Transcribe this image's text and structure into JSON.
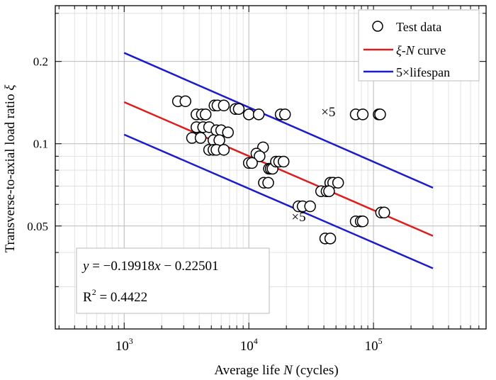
{
  "chart_data": {
    "type": "scatter",
    "title": "",
    "xlabel_prefix": "Average life ",
    "xlabel_var": "N",
    "xlabel_suffix": " (cycles)",
    "ylabel_prefix": "Transverse-to-axial load ratio ",
    "ylabel_var": "ξ",
    "xscale": "log",
    "yscale": "log",
    "xlim": [
      280,
      800000
    ],
    "ylim": [
      0.021,
      0.32
    ],
    "x_ticks": [
      {
        "value": 1000,
        "base": "10",
        "exp": "3"
      },
      {
        "value": 10000,
        "base": "10",
        "exp": "4"
      },
      {
        "value": 100000,
        "base": "10",
        "exp": "5"
      }
    ],
    "y_ticks": [
      {
        "value": 0.05,
        "label": "0.05"
      },
      {
        "value": 0.1,
        "label": "0.1"
      },
      {
        "value": 0.2,
        "label": "0.2"
      }
    ],
    "grid": true,
    "legend_position": "top-right",
    "legend": [
      {
        "label": "Test data",
        "marker": "open-circle",
        "color": "#000000"
      },
      {
        "label_var": "ξ",
        "label_dash": "-",
        "label_var2": "N",
        "label_suffix": " curve",
        "color": "#dd1c1c"
      },
      {
        "label": "5×lifespan",
        "color": "#1c1ccc"
      }
    ],
    "series": [
      {
        "name": "Test data",
        "type": "scatter",
        "points": [
          [
            2700,
            0.143
          ],
          [
            3100,
            0.143
          ],
          [
            3800,
            0.128
          ],
          [
            4200,
            0.128
          ],
          [
            4500,
            0.128
          ],
          [
            5300,
            0.138
          ],
          [
            5600,
            0.138
          ],
          [
            6300,
            0.138
          ],
          [
            7800,
            0.134
          ],
          [
            8300,
            0.134
          ],
          [
            10000,
            0.128
          ],
          [
            12000,
            0.128
          ],
          [
            18000,
            0.128
          ],
          [
            19500,
            0.128
          ],
          [
            3800,
            0.115
          ],
          [
            4300,
            0.115
          ],
          [
            4800,
            0.115
          ],
          [
            5500,
            0.112
          ],
          [
            6000,
            0.112
          ],
          [
            6800,
            0.11
          ],
          [
            3500,
            0.105
          ],
          [
            4100,
            0.105
          ],
          [
            5200,
            0.103
          ],
          [
            5800,
            0.103
          ],
          [
            4800,
            0.095
          ],
          [
            5200,
            0.095
          ],
          [
            5500,
            0.095
          ],
          [
            6300,
            0.095
          ],
          [
            13000,
            0.097
          ],
          [
            11500,
            0.092
          ],
          [
            12200,
            0.09
          ],
          [
            10000,
            0.085
          ],
          [
            10600,
            0.085
          ],
          [
            14500,
            0.081
          ],
          [
            15000,
            0.081
          ],
          [
            15500,
            0.081
          ],
          [
            16500,
            0.086
          ],
          [
            17500,
            0.086
          ],
          [
            19000,
            0.086
          ],
          [
            13200,
            0.072
          ],
          [
            14300,
            0.072
          ],
          [
            45000,
            0.072
          ],
          [
            47500,
            0.072
          ],
          [
            52000,
            0.072
          ],
          [
            38000,
            0.067
          ],
          [
            42000,
            0.067
          ],
          [
            44000,
            0.067
          ],
          [
            25000,
            0.059
          ],
          [
            27000,
            0.059
          ],
          [
            31000,
            0.059
          ],
          [
            72000,
            0.052
          ],
          [
            79000,
            0.052
          ],
          [
            82000,
            0.052
          ],
          [
            41000,
            0.045
          ],
          [
            45000,
            0.045
          ],
          [
            115000,
            0.056
          ],
          [
            122000,
            0.056
          ],
          [
            72000,
            0.128
          ],
          [
            82000,
            0.128
          ],
          [
            110000,
            0.128
          ],
          [
            113000,
            0.128
          ]
        ]
      },
      {
        "name": "ξ-N curve",
        "type": "line",
        "x": [
          1000,
          300000
        ],
        "y": [
          0.142,
          0.046
        ]
      },
      {
        "name": "5×lifespan upper",
        "type": "line",
        "x": [
          1000,
          300000
        ],
        "y": [
          0.215,
          0.069
        ]
      },
      {
        "name": "5×lifespan lower",
        "type": "line",
        "x": [
          1000,
          300000
        ],
        "y": [
          0.108,
          0.035
        ]
      }
    ],
    "annotations": [
      {
        "text": "×5",
        "x": 38000,
        "y": 0.126
      },
      {
        "text": "×5",
        "x": 22000,
        "y": 0.052
      }
    ],
    "equation_box": {
      "eq_y": "y",
      "eq_equals": " = −0.19918",
      "eq_x": "x",
      "eq_rest": " − 0.22501",
      "r2_base": "R",
      "r2_exp": "2",
      "r2_value": " = 0.4422"
    },
    "colors": {
      "fit": "#dd1c1c",
      "band": "#1c1ccc",
      "grid_major": "#b9b9b9",
      "grid_minor": "#dcdcdc"
    }
  }
}
